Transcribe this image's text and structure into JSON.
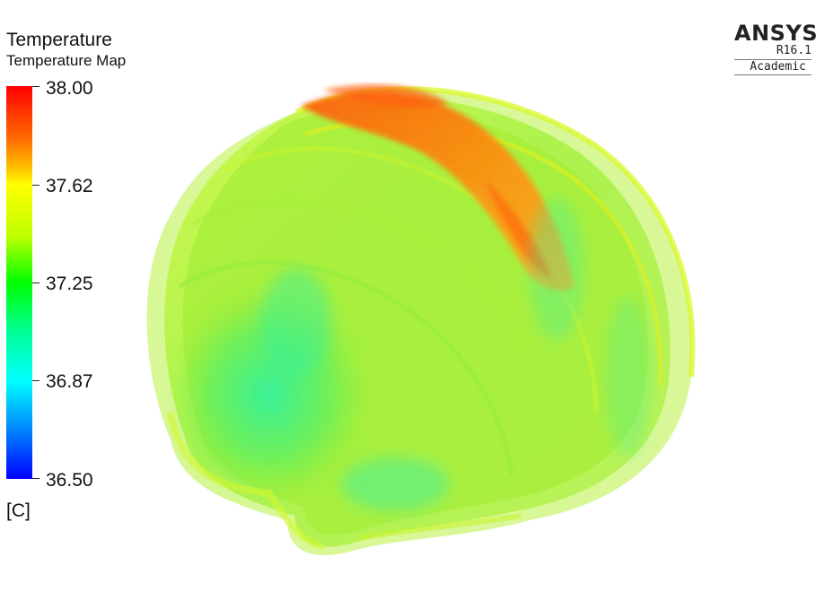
{
  "legend": {
    "title": "Temperature",
    "subtitle": "Temperature Map",
    "unit": "[C]",
    "ticks": [
      "38.00",
      "37.62",
      "37.25",
      "36.87",
      "36.50"
    ],
    "min": 36.5,
    "max": 38.0,
    "colormap": [
      "#0000ff",
      "#00ffff",
      "#00ff00",
      "#ffff00",
      "#ff0000"
    ]
  },
  "branding": {
    "name": "ANSYS",
    "version": "R16.1",
    "edition": "Academic"
  },
  "model": {
    "description_icon": "brain-temperature-contour",
    "max_temp_color": "#ff7a00",
    "base_color": "#b8f540"
  }
}
